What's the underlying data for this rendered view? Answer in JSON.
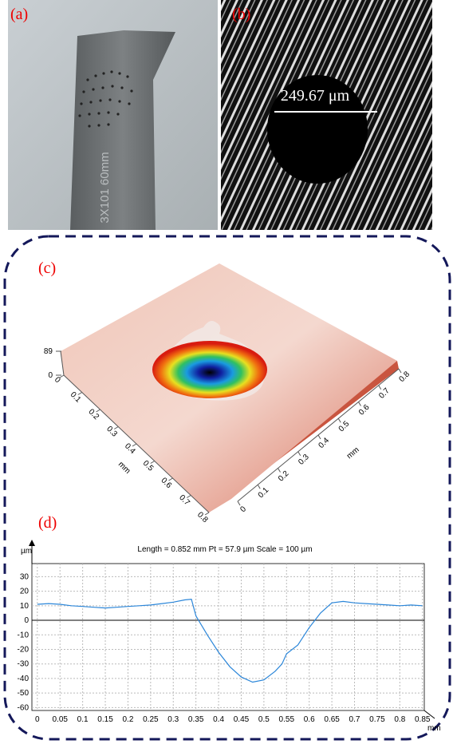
{
  "panels": {
    "a": {
      "label": "(a)",
      "engraving": "3X101 60mm"
    },
    "b": {
      "label": "(b)",
      "scale_bar": "249.67 μm"
    },
    "c": {
      "label": "(c)"
    },
    "d": {
      "label": "(d)"
    }
  },
  "chart_data": [
    {
      "type": "surface",
      "x_label": "mm",
      "y_label": "mm",
      "xticks": [
        0,
        0.1,
        0.2,
        0.3,
        0.4,
        0.5,
        0.6,
        0.7,
        0.8
      ],
      "yticks": [
        0,
        0.1,
        0.2,
        0.3,
        0.4,
        0.5,
        0.6,
        0.7,
        0.8
      ],
      "zticks": [
        0,
        89
      ]
    },
    {
      "type": "line",
      "title": "Length = 0.852 mm  Pt = 57.9 µm  Scale = 100 µm",
      "y_unit": "µm",
      "x_unit": "mm",
      "grid": true,
      "color": "#2b86d9",
      "xlim": [
        -0.012,
        0.854
      ],
      "ylim": [
        -62,
        39
      ],
      "xticks": [
        0,
        0.05,
        0.1,
        0.15,
        0.2,
        0.25,
        0.3,
        0.35,
        0.4,
        0.45,
        0.5,
        0.55,
        0.6,
        0.65,
        0.7,
        0.75,
        0.8,
        0.85
      ],
      "yticks": [
        30,
        20,
        10,
        0,
        -10,
        -20,
        -30,
        -40,
        -50,
        -60
      ],
      "x": [
        0,
        0.025,
        0.05,
        0.075,
        0.1,
        0.125,
        0.15,
        0.175,
        0.2,
        0.225,
        0.25,
        0.275,
        0.3,
        0.325,
        0.34,
        0.35,
        0.375,
        0.4,
        0.425,
        0.45,
        0.475,
        0.5,
        0.525,
        0.54,
        0.55,
        0.575,
        0.6,
        0.625,
        0.65,
        0.675,
        0.7,
        0.725,
        0.75,
        0.775,
        0.8,
        0.825,
        0.85
      ],
      "values": [
        11,
        11.5,
        11,
        10,
        9.5,
        9,
        8.5,
        9,
        9.5,
        10,
        10.5,
        11.5,
        12.5,
        14,
        14.5,
        3,
        -10,
        -22,
        -32,
        -39,
        -42.5,
        -41,
        -35,
        -30,
        -23,
        -17,
        -5,
        5,
        12,
        13,
        12,
        11.5,
        11,
        10.5,
        10,
        10.5,
        10
      ]
    }
  ]
}
